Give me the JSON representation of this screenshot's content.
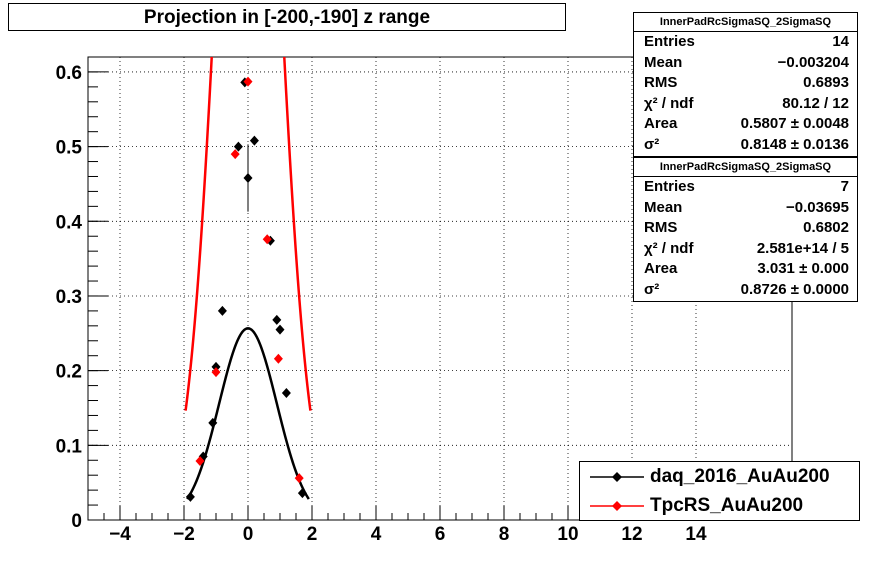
{
  "title": "Projection in [-200,-190] z range",
  "stats_boxes": [
    {
      "name": "InnerPadRcSigmaSQ_2SigmaSQ",
      "rows": [
        {
          "label": "Entries",
          "value": "14"
        },
        {
          "label": "Mean",
          "value": "−0.003204"
        },
        {
          "label": "RMS",
          "value": "0.6893"
        },
        {
          "label": "χ² / ndf",
          "value": "80.12 / 12"
        },
        {
          "label": "Area",
          "value": "0.5807 ± 0.0048"
        },
        {
          "label": "σ²",
          "value": "0.8148 ± 0.0136"
        }
      ]
    },
    {
      "name": "InnerPadRcSigmaSQ_2SigmaSQ",
      "rows": [
        {
          "label": "Entries",
          "value": "7"
        },
        {
          "label": "Mean",
          "value": "−0.03695"
        },
        {
          "label": "RMS",
          "value": "0.6802"
        },
        {
          "label": "χ² / ndf",
          "value": "2.581e+14 / 5"
        },
        {
          "label": "Area",
          "value": "3.031 ± 0.000"
        },
        {
          "label": "σ²",
          "value": "0.8726 ± 0.0000"
        }
      ]
    }
  ],
  "legend": [
    {
      "label": "daq_2016_AuAu200",
      "color": "#000000"
    },
    {
      "label": "TpcRS_AuAu200",
      "color": "#ff0000"
    }
  ],
  "chart_data": {
    "type": "scatter",
    "xlim": [
      -5,
      17
    ],
    "ylim": [
      0,
      0.62
    ],
    "x_ticks": [
      -4,
      -2,
      0,
      2,
      4,
      6,
      8,
      10,
      12,
      14
    ],
    "x_tick_labels": [
      "−4",
      "−2",
      "0",
      "2",
      "4",
      "6",
      "8",
      "10",
      "12",
      "14"
    ],
    "y_ticks": [
      0,
      0.1,
      0.2,
      0.3,
      0.4,
      0.5,
      0.6
    ],
    "y_tick_labels": [
      "0",
      "0.1",
      "0.2",
      "0.3",
      "0.4",
      "0.5",
      "0.6"
    ],
    "grid": true,
    "series": [
      {
        "name": "daq_2016_AuAu200",
        "color": "#000000",
        "points": [
          {
            "x": -1.8,
            "y": 0.031
          },
          {
            "x": -1.4,
            "y": 0.085
          },
          {
            "x": -1.1,
            "y": 0.13
          },
          {
            "x": -1.0,
            "y": 0.205
          },
          {
            "x": -0.8,
            "y": 0.28
          },
          {
            "x": -0.3,
            "y": 0.5
          },
          {
            "x": -0.1,
            "y": 0.586
          },
          {
            "x": 0.0,
            "y": 0.458,
            "err": 0.045
          },
          {
            "x": 0.2,
            "y": 0.508
          },
          {
            "x": 0.7,
            "y": 0.374
          },
          {
            "x": 0.9,
            "y": 0.268
          },
          {
            "x": 1.0,
            "y": 0.255
          },
          {
            "x": 1.2,
            "y": 0.17
          },
          {
            "x": 1.7,
            "y": 0.036
          }
        ],
        "fit": {
          "area": 0.5807,
          "sigma2": 0.8148,
          "mean": 0.0,
          "range": [
            -1.9,
            1.9
          ]
        }
      },
      {
        "name": "TpcRS_AuAu200",
        "color": "#ff0000",
        "points": [
          {
            "x": -1.5,
            "y": 0.079
          },
          {
            "x": -1.0,
            "y": 0.198
          },
          {
            "x": -0.4,
            "y": 0.49
          },
          {
            "x": 0.0,
            "y": 0.587
          },
          {
            "x": 0.6,
            "y": 0.376
          },
          {
            "x": 0.95,
            "y": 0.216
          },
          {
            "x": 1.6,
            "y": 0.056
          }
        ],
        "fit": {
          "area": 3.031,
          "sigma2": 0.8726,
          "mean": 0.0,
          "range": [
            -1.95,
            1.95
          ]
        }
      }
    ]
  }
}
